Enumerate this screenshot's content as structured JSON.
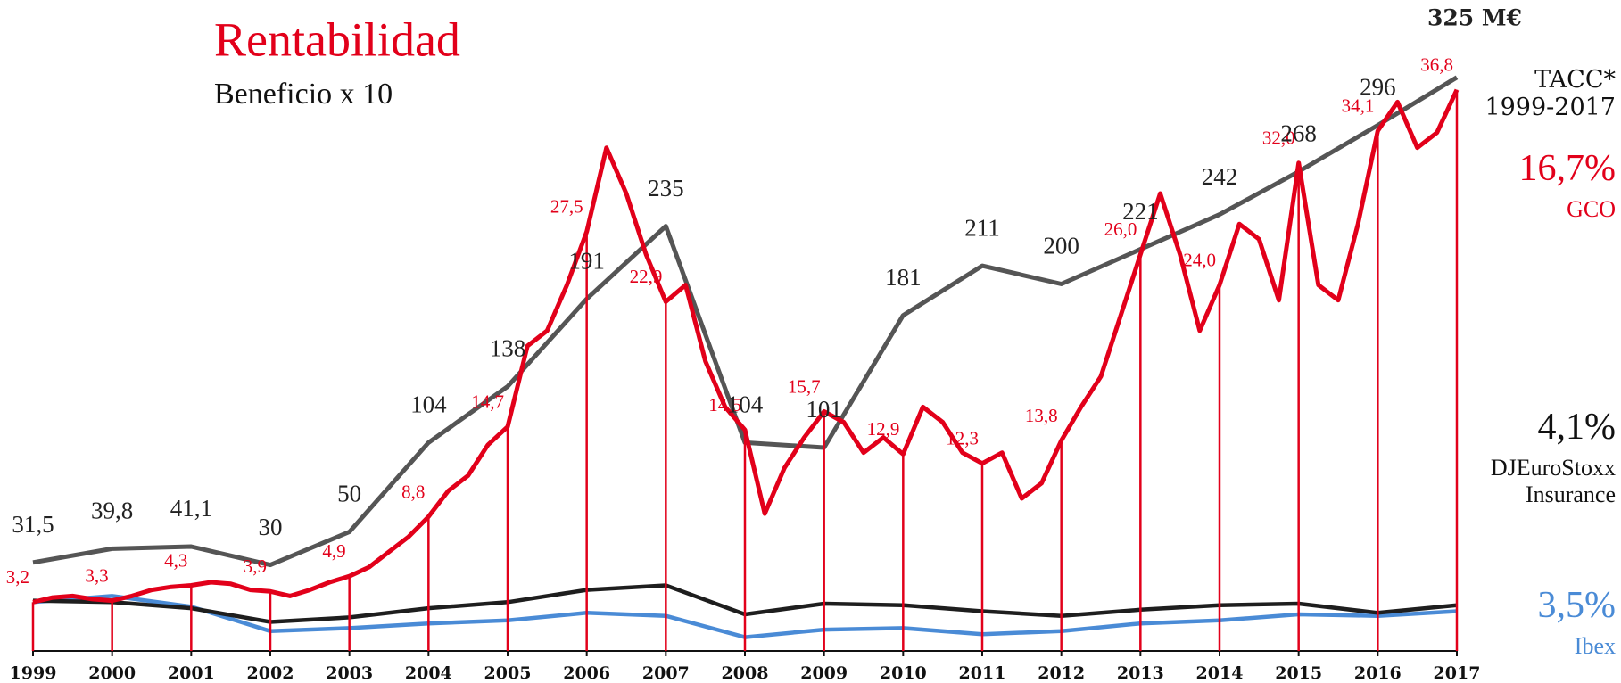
{
  "chart_data": {
    "type": "line",
    "title": "Rentabilidad",
    "subtitle": "Beneficio x 10",
    "xlim": [
      1999,
      2017
    ],
    "xticks": [
      1999,
      2000,
      2001,
      2002,
      2003,
      2004,
      2005,
      2006,
      2007,
      2008,
      2009,
      2010,
      2011,
      2012,
      2013,
      2014,
      2015,
      2016,
      2017
    ],
    "ylim": [
      0,
      40
    ],
    "y2lim": [
      -22,
      347
    ],
    "growth_title": "TACC* 1999-2017",
    "series": [
      {
        "name": "GCO",
        "color": "#e2001a",
        "growth_label": "16,7%",
        "x": [
          1999,
          1999.25,
          1999.5,
          1999.75,
          2000,
          2000.25,
          2000.5,
          2000.75,
          2001,
          2001.25,
          2001.5,
          2001.75,
          2002,
          2002.25,
          2002.5,
          2002.75,
          2003,
          2003.25,
          2003.5,
          2003.75,
          2004,
          2004.25,
          2004.5,
          2004.75,
          2005,
          2005.25,
          2005.5,
          2005.75,
          2006,
          2006.25,
          2006.5,
          2006.75,
          2007,
          2007.25,
          2007.5,
          2007.75,
          2008,
          2008.25,
          2008.5,
          2008.75,
          2009,
          2009.25,
          2009.5,
          2009.75,
          2010,
          2010.25,
          2010.5,
          2010.75,
          2011,
          2011.25,
          2011.5,
          2011.75,
          2012,
          2012.25,
          2012.5,
          2012.75,
          2013,
          2013.25,
          2013.5,
          2013.75,
          2014,
          2014.25,
          2014.5,
          2014.75,
          2015,
          2015.25,
          2015.5,
          2015.75,
          2016,
          2016.25,
          2016.5,
          2016.75,
          2017
        ],
        "values": [
          3.2,
          3.5,
          3.6,
          3.4,
          3.3,
          3.6,
          4.0,
          4.2,
          4.3,
          4.5,
          4.4,
          4.0,
          3.9,
          3.6,
          4.0,
          4.5,
          4.9,
          5.5,
          6.5,
          7.5,
          8.8,
          10.5,
          11.5,
          13.5,
          14.7,
          20,
          21,
          24,
          27.5,
          33,
          30,
          26,
          22.9,
          24,
          19,
          16,
          14.5,
          9,
          12,
          14,
          15.7,
          15,
          13,
          14,
          12.9,
          16,
          15,
          13,
          12.3,
          13,
          10,
          11,
          13.8,
          16,
          18,
          22,
          26.0,
          30,
          26,
          21,
          24.0,
          28,
          27,
          23,
          32.0,
          24,
          23,
          28,
          34.1,
          36,
          33,
          34,
          36.8
        ],
        "value_labels": [
          "3,2",
          null,
          null,
          null,
          "3,3",
          null,
          null,
          null,
          "4,3",
          null,
          null,
          null,
          "3,9",
          null,
          null,
          null,
          "4,9",
          null,
          null,
          null,
          "8,8",
          null,
          null,
          null,
          "14,7",
          null,
          null,
          null,
          "27,5",
          null,
          null,
          null,
          "22,9",
          null,
          null,
          null,
          "14,5",
          null,
          null,
          null,
          "15,7",
          null,
          null,
          null,
          "12,9",
          null,
          null,
          null,
          "12,3",
          null,
          null,
          null,
          "13,8",
          null,
          null,
          null,
          "26,0",
          null,
          null,
          null,
          "24,0",
          null,
          null,
          null,
          "32,0",
          null,
          null,
          null,
          "34,1",
          null,
          null,
          null,
          "36,8"
        ]
      },
      {
        "name": "DJEuroStoxx Insurance",
        "color": "#1e1e1e",
        "growth_label": "4,1%",
        "x": [
          1999,
          2000,
          2001,
          2002,
          2003,
          2004,
          2005,
          2006,
          2007,
          2008,
          2009,
          2010,
          2011,
          2012,
          2013,
          2014,
          2015,
          2016,
          2017
        ],
        "values": [
          3.3,
          3.2,
          2.8,
          1.9,
          2.2,
          2.8,
          3.2,
          4.0,
          4.3,
          2.4,
          3.1,
          3.0,
          2.6,
          2.3,
          2.7,
          3.0,
          3.1,
          2.5,
          3.0
        ]
      },
      {
        "name": "Ibex",
        "color": "#4a8bd6",
        "growth_label": "3,5%",
        "x": [
          1999,
          2000,
          2001,
          2002,
          2003,
          2004,
          2005,
          2006,
          2007,
          2008,
          2009,
          2010,
          2011,
          2012,
          2013,
          2014,
          2015,
          2016,
          2017
        ],
        "values": [
          3.2,
          3.6,
          2.9,
          1.3,
          1.5,
          1.8,
          2.0,
          2.5,
          2.3,
          0.9,
          1.4,
          1.5,
          1.1,
          1.3,
          1.8,
          2.0,
          2.4,
          2.3,
          2.6
        ]
      },
      {
        "color": "#555555",
        "axis": "y2",
        "x": [
          1999,
          2000,
          2001,
          2002,
          2003,
          2004,
          2005,
          2006,
          2007,
          2008,
          2009,
          2010,
          2011,
          2012,
          2013,
          2014,
          2015,
          2016,
          2017
        ],
        "values": [
          31.5,
          39.8,
          41.1,
          30,
          50,
          104,
          138,
          191,
          235,
          104,
          101,
          181,
          211,
          200,
          221,
          242,
          268,
          296,
          325
        ],
        "value_labels": [
          "31,5",
          "39,8",
          "41,1",
          "30",
          "50",
          "104",
          "138",
          "191",
          "235",
          "104",
          "101",
          "181",
          "211",
          "200",
          "221",
          "242",
          "268",
          "296",
          "325 M€"
        ]
      }
    ]
  }
}
